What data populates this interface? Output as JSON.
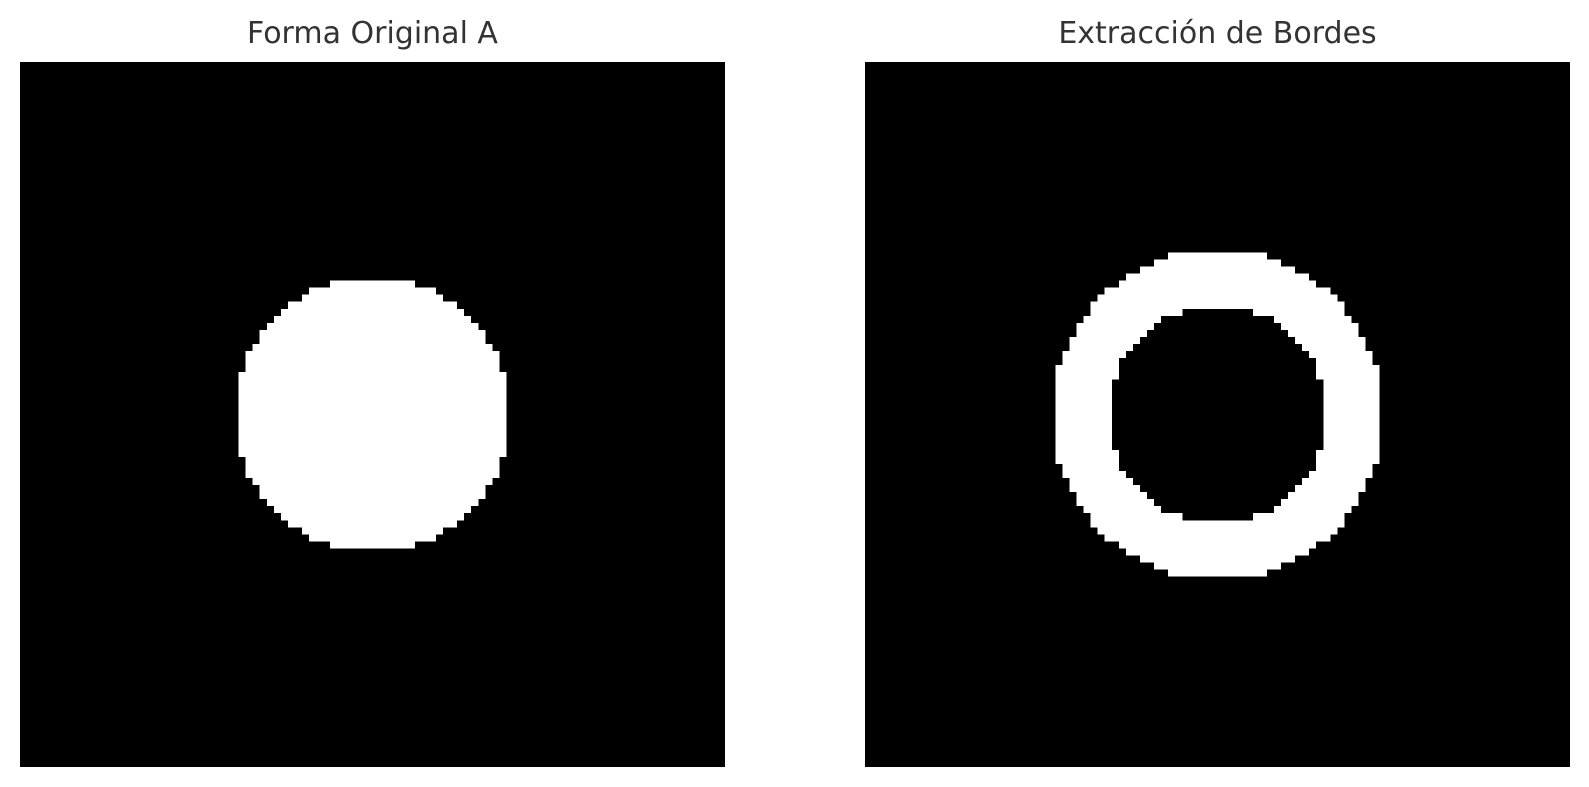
{
  "panels": [
    {
      "title": "Forma Original A",
      "grid_size": 100,
      "shape": "filled-disk",
      "center": [
        50,
        50
      ],
      "radius": 19.5,
      "foreground_color": "#ffffff",
      "background_color": "#000000"
    },
    {
      "title": "Extracción de Bordes",
      "grid_size": 100,
      "shape": "ring",
      "center": [
        50,
        50
      ],
      "outer_radius": 23.5,
      "inner_radius": 15.5,
      "foreground_color": "#ffffff",
      "background_color": "#000000"
    }
  ]
}
